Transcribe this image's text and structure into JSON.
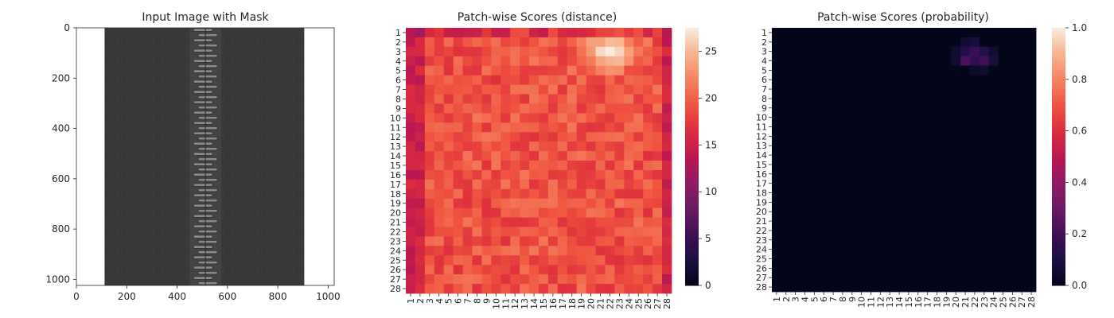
{
  "figure": {
    "background": "#ffffff",
    "axis_color": "#262626"
  },
  "chart_data": [
    {
      "type": "image",
      "title": "Input Image with Mask",
      "xlim": [
        0,
        1024
      ],
      "ylim": [
        1024,
        0
      ],
      "xticks": [
        0,
        200,
        400,
        600,
        800,
        1000
      ],
      "yticks": [
        0,
        200,
        400,
        600,
        800,
        1000
      ],
      "content": {
        "subject": "zipper on dark woven fabric",
        "fabric_x_range": [
          112,
          905
        ],
        "teeth_x_range": [
          450,
          575
        ],
        "fabric_color": "#3a3a3a",
        "margin_color": "#ffffff"
      }
    },
    {
      "type": "heatmap",
      "title": "Patch-wise Scores (distance)",
      "rows": 28,
      "cols": 28,
      "row_labels": [
        "1",
        "2",
        "3",
        "4",
        "5",
        "6",
        "7",
        "8",
        "9",
        "10",
        "11",
        "12",
        "13",
        "14",
        "15",
        "16",
        "17",
        "18",
        "19",
        "20",
        "21",
        "22",
        "23",
        "24",
        "25",
        "26",
        "27",
        "28"
      ],
      "col_labels": [
        "1",
        "2",
        "3",
        "4",
        "5",
        "6",
        "7",
        "8",
        "9",
        "10",
        "11",
        "12",
        "13",
        "14",
        "15",
        "16",
        "17",
        "18",
        "19",
        "20",
        "21",
        "22",
        "23",
        "24",
        "25",
        "26",
        "27",
        "28"
      ],
      "colormap": "rocket",
      "vmin": 0,
      "vmax": 27.5,
      "colorbar_ticks": [
        0,
        5,
        10,
        15,
        20,
        25
      ],
      "base_value": 19,
      "hotspot": {
        "rows": [
          2,
          4
        ],
        "cols": [
          20,
          24
        ],
        "peak": 27.5
      },
      "low_columns": [
        1,
        2,
        28
      ],
      "low_value": 15
    },
    {
      "type": "heatmap",
      "title": "Patch-wise Scores (probability)",
      "rows": 28,
      "cols": 28,
      "row_labels": [
        "1",
        "2",
        "3",
        "4",
        "5",
        "6",
        "7",
        "8",
        "9",
        "10",
        "11",
        "12",
        "13",
        "14",
        "15",
        "16",
        "17",
        "18",
        "19",
        "20",
        "21",
        "22",
        "23",
        "24",
        "25",
        "26",
        "27",
        "28"
      ],
      "col_labels": [
        "1",
        "2",
        "3",
        "4",
        "5",
        "6",
        "7",
        "8",
        "9",
        "10",
        "11",
        "12",
        "13",
        "14",
        "15",
        "16",
        "17",
        "18",
        "19",
        "20",
        "21",
        "22",
        "23",
        "24",
        "25",
        "26",
        "27",
        "28"
      ],
      "colormap": "rocket",
      "vmin": 0,
      "vmax": 1,
      "colorbar_ticks": [
        "0.0",
        "0.2",
        "0.4",
        "0.6",
        "0.8",
        "1.0"
      ],
      "nonzero_cells": [
        {
          "row": 2,
          "col": 21,
          "value": 0.06
        },
        {
          "row": 2,
          "col": 22,
          "value": 0.08
        },
        {
          "row": 3,
          "col": 20,
          "value": 0.05
        },
        {
          "row": 3,
          "col": 21,
          "value": 0.12
        },
        {
          "row": 3,
          "col": 22,
          "value": 0.18
        },
        {
          "row": 3,
          "col": 23,
          "value": 0.12
        },
        {
          "row": 3,
          "col": 24,
          "value": 0.06
        },
        {
          "row": 4,
          "col": 20,
          "value": 0.05
        },
        {
          "row": 4,
          "col": 21,
          "value": 0.22
        },
        {
          "row": 4,
          "col": 22,
          "value": 0.15
        },
        {
          "row": 4,
          "col": 23,
          "value": 0.2
        },
        {
          "row": 4,
          "col": 24,
          "value": 0.08
        },
        {
          "row": 5,
          "col": 22,
          "value": 0.04
        },
        {
          "row": 5,
          "col": 23,
          "value": 0.05
        }
      ]
    }
  ]
}
